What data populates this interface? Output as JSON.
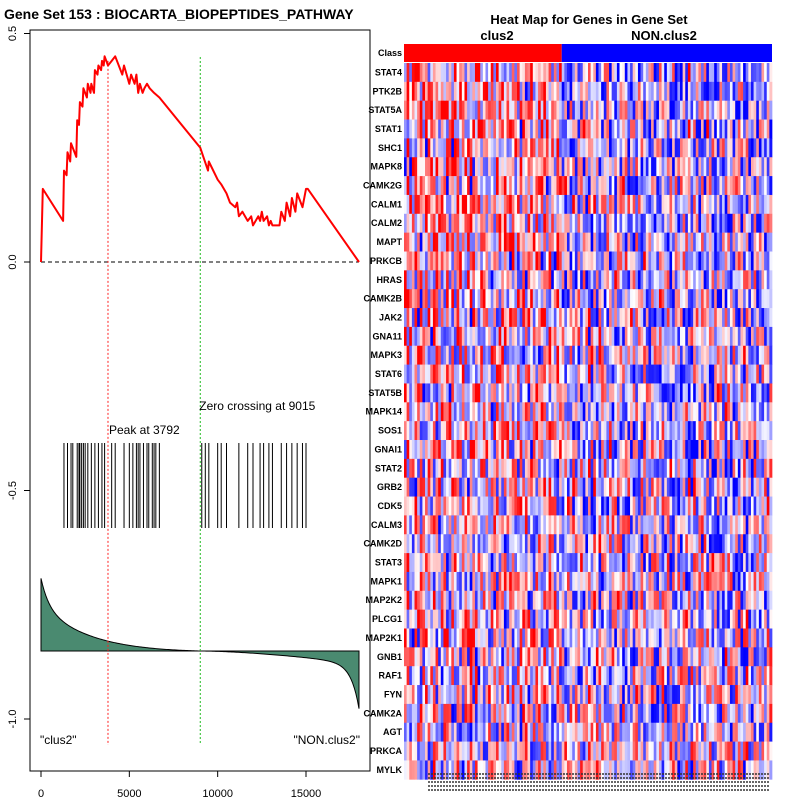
{
  "chart_data": [
    {
      "type": "line",
      "title": "Gene Set  153 : BIOCARTA_BIOPEPTIDES_PATHWAY",
      "x_ticks": [
        0,
        5000,
        10000,
        15000
      ],
      "y_ticks": [
        0.5,
        0.0,
        -0.5,
        -1.0
      ],
      "y_tick_labels": [
        "0.5",
        "0.0",
        "-0.5",
        "-1.0"
      ],
      "xlim": [
        0,
        18000
      ],
      "ylim": [
        -1.05,
        0.5
      ],
      "n_genes": 18000,
      "peak_label": "Peak at 3792",
      "peak_x": 3792,
      "zero_label": "Zero crossing at 9015",
      "zero_x": 9015,
      "left_class_label": "\"clus2\"",
      "right_class_label": "\"NON.clus2\"",
      "colors": {
        "enrichment_line": "#ff0000",
        "peak_line": "#ff2222",
        "zero_line": "#22bb22",
        "metric_fill": "#4a8a70"
      },
      "series": [
        {
          "name": "running enrichment score",
          "x": [
            0,
            100,
            1250,
            1300,
            1450,
            1500,
            1650,
            1700,
            2000,
            2050,
            2150,
            2200,
            2350,
            2400,
            2600,
            2650,
            2800,
            2850,
            3000,
            3050,
            3200,
            3250,
            3400,
            3450,
            3550,
            3600,
            3792,
            4000,
            4200,
            4600,
            4700,
            5000,
            5100,
            5300,
            5400,
            5500,
            5600,
            5750,
            5850,
            6000,
            6150,
            6400,
            6700,
            9015,
            9100,
            9450,
            9500,
            10000,
            10200,
            10500,
            10700,
            11000,
            11100,
            11200,
            11400,
            11700,
            11900,
            12000,
            12300,
            12400,
            12500,
            12600,
            12800,
            12900,
            13000,
            13100,
            13500,
            13600,
            13800,
            13900,
            14100,
            14200,
            14400,
            14500,
            14800,
            15000,
            15100,
            18000
          ],
          "y": [
            0.0,
            0.16,
            0.09,
            0.2,
            0.19,
            0.24,
            0.22,
            0.26,
            0.23,
            0.31,
            0.3,
            0.35,
            0.34,
            0.38,
            0.36,
            0.39,
            0.37,
            0.39,
            0.37,
            0.42,
            0.41,
            0.43,
            0.42,
            0.44,
            0.43,
            0.45,
            0.43,
            0.44,
            0.45,
            0.41,
            0.43,
            0.39,
            0.41,
            0.39,
            0.41,
            0.37,
            0.39,
            0.37,
            0.38,
            0.39,
            0.38,
            0.37,
            0.36,
            0.25,
            0.24,
            0.2,
            0.22,
            0.18,
            0.17,
            0.15,
            0.13,
            0.12,
            0.13,
            0.1,
            0.11,
            0.09,
            0.1,
            0.08,
            0.1,
            0.09,
            0.11,
            0.09,
            0.1,
            0.08,
            0.09,
            0.08,
            0.08,
            0.11,
            0.09,
            0.13,
            0.1,
            0.14,
            0.11,
            0.15,
            0.12,
            0.16,
            0.16,
            0.0
          ]
        }
      ],
      "hit_positions": [
        1300,
        1500,
        1700,
        1800,
        2050,
        2150,
        2200,
        2300,
        2400,
        2500,
        2650,
        2850,
        3050,
        3250,
        3450,
        3600,
        4000,
        4200,
        4700,
        5000,
        5200,
        5400,
        5500,
        5600,
        5800,
        6000,
        6100,
        6300,
        6400,
        6500,
        6700,
        9100,
        9300,
        9500,
        10000,
        10200,
        10500,
        11200,
        11700,
        12000,
        12400,
        12600,
        12900,
        13100,
        13600,
        13900,
        14200,
        14500,
        14800,
        15000
      ]
    },
    {
      "type": "heatmap",
      "title": "Heat Map for Genes in Gene Set",
      "class_row_label": "Class",
      "classes": [
        {
          "name": "clus2",
          "color": "#ff0000",
          "n": 60
        },
        {
          "name": "NON.clus2",
          "color": "#0000ff",
          "n": 80
        }
      ],
      "genes": [
        "STAT4",
        "PTK2B",
        "STAT5A",
        "STAT1",
        "SHC1",
        "MAPK8",
        "CAMK2G",
        "CALM1",
        "CALM2",
        "MAPT",
        "PRKCB",
        "HRAS",
        "CAMK2B",
        "JAK2",
        "GNA11",
        "MAPK3",
        "STAT6",
        "STAT5B",
        "MAPK14",
        "SOS1",
        "GNAI1",
        "STAT2",
        "GRB2",
        "CDK5",
        "CALM3",
        "CAMK2D",
        "STAT3",
        "MAPK1",
        "MAP2K2",
        "PLCG1",
        "MAP2K1",
        "GNB1",
        "RAF1",
        "FYN",
        "CAMK2A",
        "AGT",
        "PRKCA",
        "MYLK"
      ],
      "n_columns": 140,
      "value_range": [
        -1,
        1
      ],
      "colors": {
        "low": "#0000ff",
        "mid": "#ffffff",
        "high": "#ff0000"
      },
      "seed": 153
    }
  ]
}
